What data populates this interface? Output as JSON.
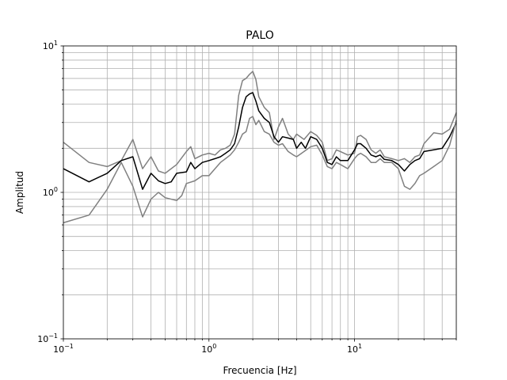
{
  "chart_data": {
    "type": "line",
    "title": "PALO",
    "xlabel": "Frecuencia [Hz]",
    "ylabel": "Amplitud",
    "xscale": "log",
    "yscale": "log",
    "xlim": [
      0.1,
      50
    ],
    "ylim": [
      0.1,
      10
    ],
    "grid": "both (major and minor)",
    "legend": "none",
    "x_major_ticks": [
      {
        "value": 0.1,
        "base": "10",
        "exp": "−1"
      },
      {
        "value": 1,
        "base": "10",
        "exp": "0"
      },
      {
        "value": 10,
        "base": "10",
        "exp": "1"
      }
    ],
    "y_major_ticks": [
      {
        "value": 0.1,
        "base": "10",
        "exp": "−1"
      },
      {
        "value": 1,
        "base": "10",
        "exp": "0"
      },
      {
        "value": 10,
        "base": "10",
        "exp": "1"
      }
    ],
    "series": [
      {
        "color": "#808080",
        "role": "upper",
        "points": [
          [
            0.1,
            2.2
          ],
          [
            0.15,
            1.6
          ],
          [
            0.2,
            1.5
          ],
          [
            0.25,
            1.65
          ],
          [
            0.3,
            2.3
          ],
          [
            0.35,
            1.45
          ],
          [
            0.4,
            1.75
          ],
          [
            0.45,
            1.4
          ],
          [
            0.5,
            1.35
          ],
          [
            0.6,
            1.55
          ],
          [
            0.7,
            1.9
          ],
          [
            0.75,
            2.05
          ],
          [
            0.8,
            1.7
          ],
          [
            0.9,
            1.8
          ],
          [
            1.0,
            1.85
          ],
          [
            1.1,
            1.8
          ],
          [
            1.2,
            1.95
          ],
          [
            1.3,
            2.0
          ],
          [
            1.4,
            2.1
          ],
          [
            1.5,
            2.5
          ],
          [
            1.6,
            4.6
          ],
          [
            1.7,
            5.8
          ],
          [
            1.8,
            6.0
          ],
          [
            1.9,
            6.4
          ],
          [
            2.0,
            6.7
          ],
          [
            2.1,
            5.9
          ],
          [
            2.2,
            4.5
          ],
          [
            2.4,
            3.8
          ],
          [
            2.6,
            3.5
          ],
          [
            2.8,
            2.3
          ],
          [
            3.0,
            2.8
          ],
          [
            3.2,
            3.2
          ],
          [
            3.5,
            2.5
          ],
          [
            3.8,
            2.3
          ],
          [
            4.0,
            2.5
          ],
          [
            4.5,
            2.3
          ],
          [
            5.0,
            2.6
          ],
          [
            5.5,
            2.45
          ],
          [
            6.0,
            2.2
          ],
          [
            6.5,
            1.65
          ],
          [
            7.0,
            1.7
          ],
          [
            7.5,
            1.95
          ],
          [
            8.0,
            1.9
          ],
          [
            9.0,
            1.8
          ],
          [
            10.0,
            1.85
          ],
          [
            10.5,
            2.4
          ],
          [
            11.0,
            2.45
          ],
          [
            12.0,
            2.3
          ],
          [
            13.0,
            1.95
          ],
          [
            14.0,
            1.85
          ],
          [
            15.0,
            1.95
          ],
          [
            16.0,
            1.75
          ],
          [
            18.0,
            1.7
          ],
          [
            20.0,
            1.65
          ],
          [
            22.0,
            1.7
          ],
          [
            24.0,
            1.6
          ],
          [
            26.0,
            1.75
          ],
          [
            28.0,
            1.8
          ],
          [
            30.0,
            2.15
          ],
          [
            35.0,
            2.55
          ],
          [
            40.0,
            2.5
          ],
          [
            45.0,
            2.7
          ],
          [
            50.0,
            3.5
          ]
        ]
      },
      {
        "color": "#000000",
        "role": "mean",
        "points": [
          [
            0.1,
            1.45
          ],
          [
            0.15,
            1.18
          ],
          [
            0.2,
            1.35
          ],
          [
            0.25,
            1.65
          ],
          [
            0.3,
            1.75
          ],
          [
            0.35,
            1.05
          ],
          [
            0.4,
            1.35
          ],
          [
            0.45,
            1.2
          ],
          [
            0.5,
            1.15
          ],
          [
            0.55,
            1.18
          ],
          [
            0.6,
            1.35
          ],
          [
            0.7,
            1.38
          ],
          [
            0.75,
            1.6
          ],
          [
            0.8,
            1.45
          ],
          [
            0.9,
            1.6
          ],
          [
            1.0,
            1.65
          ],
          [
            1.1,
            1.7
          ],
          [
            1.2,
            1.75
          ],
          [
            1.3,
            1.85
          ],
          [
            1.4,
            1.95
          ],
          [
            1.5,
            2.15
          ],
          [
            1.6,
            2.8
          ],
          [
            1.7,
            3.8
          ],
          [
            1.8,
            4.5
          ],
          [
            1.9,
            4.7
          ],
          [
            2.0,
            4.8
          ],
          [
            2.1,
            4.2
          ],
          [
            2.2,
            3.6
          ],
          [
            2.4,
            3.2
          ],
          [
            2.6,
            3.0
          ],
          [
            2.8,
            2.4
          ],
          [
            3.0,
            2.2
          ],
          [
            3.2,
            2.4
          ],
          [
            3.5,
            2.35
          ],
          [
            3.8,
            2.3
          ],
          [
            4.0,
            2.0
          ],
          [
            4.3,
            2.2
          ],
          [
            4.6,
            2.0
          ],
          [
            5.0,
            2.4
          ],
          [
            5.5,
            2.3
          ],
          [
            6.0,
            2.0
          ],
          [
            6.5,
            1.6
          ],
          [
            7.0,
            1.55
          ],
          [
            7.5,
            1.75
          ],
          [
            8.0,
            1.65
          ],
          [
            9.0,
            1.65
          ],
          [
            10.0,
            1.95
          ],
          [
            10.5,
            2.15
          ],
          [
            11.0,
            2.15
          ],
          [
            12.0,
            2.0
          ],
          [
            13.0,
            1.8
          ],
          [
            14.0,
            1.75
          ],
          [
            15.0,
            1.8
          ],
          [
            16.0,
            1.68
          ],
          [
            18.0,
            1.65
          ],
          [
            20.0,
            1.55
          ],
          [
            22.0,
            1.4
          ],
          [
            24.0,
            1.55
          ],
          [
            26.0,
            1.65
          ],
          [
            28.0,
            1.7
          ],
          [
            30.0,
            1.9
          ],
          [
            35.0,
            1.95
          ],
          [
            40.0,
            2.0
          ],
          [
            45.0,
            2.4
          ],
          [
            50.0,
            3.0
          ]
        ]
      },
      {
        "color": "#808080",
        "role": "lower",
        "points": [
          [
            0.1,
            0.62
          ],
          [
            0.15,
            0.7
          ],
          [
            0.2,
            1.05
          ],
          [
            0.25,
            1.6
          ],
          [
            0.3,
            1.1
          ],
          [
            0.35,
            0.68
          ],
          [
            0.4,
            0.9
          ],
          [
            0.45,
            1.0
          ],
          [
            0.5,
            0.92
          ],
          [
            0.6,
            0.88
          ],
          [
            0.65,
            0.95
          ],
          [
            0.7,
            1.15
          ],
          [
            0.8,
            1.2
          ],
          [
            0.9,
            1.3
          ],
          [
            1.0,
            1.3
          ],
          [
            1.1,
            1.45
          ],
          [
            1.2,
            1.6
          ],
          [
            1.3,
            1.7
          ],
          [
            1.4,
            1.8
          ],
          [
            1.5,
            1.95
          ],
          [
            1.6,
            2.2
          ],
          [
            1.7,
            2.5
          ],
          [
            1.8,
            2.6
          ],
          [
            1.9,
            3.2
          ],
          [
            2.0,
            3.3
          ],
          [
            2.1,
            2.9
          ],
          [
            2.2,
            3.1
          ],
          [
            2.4,
            2.6
          ],
          [
            2.6,
            2.5
          ],
          [
            2.8,
            2.2
          ],
          [
            3.0,
            2.1
          ],
          [
            3.2,
            2.15
          ],
          [
            3.5,
            1.9
          ],
          [
            3.8,
            1.8
          ],
          [
            4.0,
            1.75
          ],
          [
            4.5,
            1.9
          ],
          [
            5.0,
            2.05
          ],
          [
            5.5,
            2.1
          ],
          [
            6.0,
            1.8
          ],
          [
            6.5,
            1.5
          ],
          [
            7.0,
            1.45
          ],
          [
            7.5,
            1.6
          ],
          [
            8.0,
            1.55
          ],
          [
            9.0,
            1.45
          ],
          [
            10.0,
            1.7
          ],
          [
            10.5,
            1.8
          ],
          [
            11.0,
            1.85
          ],
          [
            12.0,
            1.75
          ],
          [
            13.0,
            1.6
          ],
          [
            14.0,
            1.6
          ],
          [
            15.0,
            1.7
          ],
          [
            16.0,
            1.6
          ],
          [
            18.0,
            1.6
          ],
          [
            20.0,
            1.45
          ],
          [
            22.0,
            1.1
          ],
          [
            24.0,
            1.05
          ],
          [
            26.0,
            1.15
          ],
          [
            28.0,
            1.3
          ],
          [
            30.0,
            1.35
          ],
          [
            35.0,
            1.5
          ],
          [
            40.0,
            1.65
          ],
          [
            45.0,
            2.1
          ],
          [
            50.0,
            3.1
          ]
        ]
      }
    ]
  }
}
